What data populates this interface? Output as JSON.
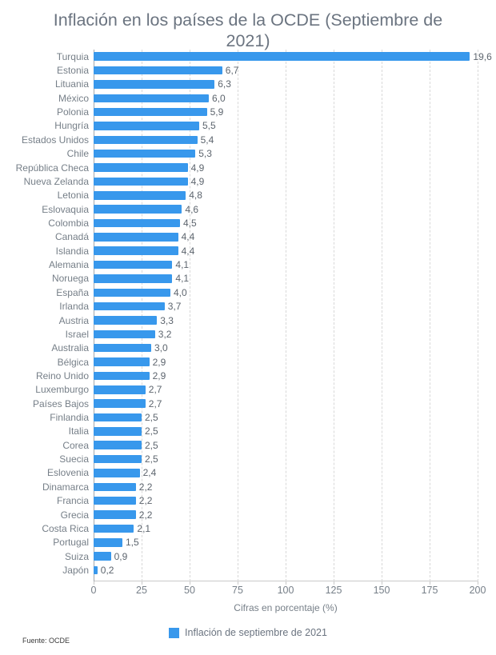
{
  "chart": {
    "title": "Inflación en los países de la OCDE (Septiembre de 2021)",
    "xlabel": "Cifras en porcentaje (%)",
    "legend_label": "Inflación de septiembre de 2021",
    "source": "Fuente: OCDE",
    "bar_color": "#3898ec"
  },
  "chart_data": {
    "type": "bar",
    "orientation": "horizontal",
    "title": "Inflación en los países de la OCDE (Septiembre de 2021)",
    "xlabel": "Cifras en porcentaje (%)",
    "legend": [
      "Inflación de septiembre de 2021"
    ],
    "legend_position": "bottom",
    "grid": "vertical-dashed",
    "xlim": [
      0,
      200
    ],
    "axis_ticks": [
      0,
      25,
      50,
      75,
      100,
      125,
      150,
      175,
      200
    ],
    "axis_scale_factor": 10,
    "categories": [
      "Turquia",
      "Estonia",
      "Lituania",
      "México",
      "Polonia",
      "Hungría",
      "Estados Unidos",
      "Chile",
      "República Checa",
      "Nueva Zelanda",
      "Letonia",
      "Eslovaquia",
      "Colombia",
      "Canadá",
      "Islandia",
      "Alemania",
      "Noruega",
      "España",
      "Irlanda",
      "Austria",
      "Israel",
      "Australia",
      "Bélgica",
      "Reino Unido",
      "Luxemburgo",
      "Países Bajos",
      "Finlandia",
      "Italia",
      "Corea",
      "Suecia",
      "Eslovenia",
      "Dinamarca",
      "Francia",
      "Grecia",
      "Costa Rica",
      "Portugal",
      "Suiza",
      "Japón"
    ],
    "values": [
      19.6,
      6.7,
      6.3,
      6.0,
      5.9,
      5.5,
      5.4,
      5.3,
      4.9,
      4.9,
      4.8,
      4.6,
      4.5,
      4.4,
      4.4,
      4.1,
      4.1,
      4.0,
      3.7,
      3.3,
      3.2,
      3.0,
      2.9,
      2.9,
      2.7,
      2.7,
      2.5,
      2.5,
      2.5,
      2.5,
      2.4,
      2.2,
      2.2,
      2.2,
      2.1,
      1.5,
      0.9,
      0.2
    ],
    "value_labels": [
      "19,6",
      "6,7",
      "6,3",
      "6,0",
      "5,9",
      "5,5",
      "5,4",
      "5,3",
      "4,9",
      "4,9",
      "4,8",
      "4,6",
      "4,5",
      "4,4",
      "4,4",
      "4,1",
      "4,1",
      "4,0",
      "3,7",
      "3,3",
      "3,2",
      "3,0",
      "2,9",
      "2,9",
      "2,7",
      "2,7",
      "2,5",
      "2,5",
      "2,5",
      "2,5",
      "2,4",
      "2,2",
      "2,2",
      "2,2",
      "2,1",
      "1,5",
      "0,9",
      "0,2"
    ],
    "source": "Fuente: OCDE"
  }
}
